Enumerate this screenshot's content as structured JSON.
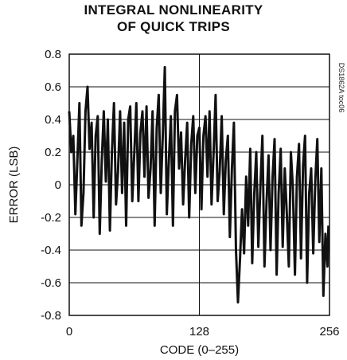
{
  "chart_data": {
    "type": "line",
    "title_line1": "INTEGRAL NONLINEARITY",
    "title_line2": "OF QUICK TRIPS",
    "xlabel": "CODE (0–255)",
    "ylabel": "ERROR (LSB)",
    "side_note": "DS1862A toc06",
    "xlim": [
      0,
      256
    ],
    "ylim": [
      -0.8,
      0.8
    ],
    "xticks": [
      0,
      128,
      256
    ],
    "xtick_labels": [
      "0",
      "128",
      "256"
    ],
    "yticks": [
      -0.8,
      -0.6,
      -0.4,
      -0.2,
      0,
      0.2,
      0.4,
      0.6,
      0.8
    ],
    "ytick_labels": [
      "-0.8",
      "-0.6",
      "-0.4",
      "-0.2",
      "0",
      "0.2",
      "0.4",
      "0.6",
      "0.8"
    ],
    "grid": true,
    "series": [
      {
        "color": "#111111",
        "x": [
          0,
          2,
          4,
          6,
          8,
          10,
          12,
          14,
          16,
          18,
          20,
          22,
          24,
          26,
          28,
          30,
          32,
          34,
          36,
          38,
          40,
          42,
          44,
          46,
          48,
          50,
          52,
          54,
          56,
          58,
          60,
          62,
          64,
          66,
          68,
          70,
          72,
          74,
          76,
          78,
          80,
          82,
          84,
          86,
          88,
          90,
          92,
          94,
          96,
          98,
          100,
          102,
          104,
          106,
          108,
          110,
          112,
          114,
          116,
          118,
          120,
          122,
          124,
          126,
          128,
          130,
          132,
          134,
          136,
          138,
          140,
          142,
          144,
          146,
          148,
          150,
          152,
          154,
          156,
          158,
          160,
          162,
          164,
          166,
          168,
          170,
          172,
          174,
          176,
          178,
          180,
          182,
          184,
          186,
          188,
          190,
          192,
          194,
          196,
          198,
          200,
          202,
          204,
          206,
          208,
          210,
          212,
          214,
          216,
          218,
          220,
          222,
          224,
          226,
          228,
          230,
          232,
          234,
          236,
          238,
          240,
          242,
          244,
          246,
          248,
          250,
          252,
          254,
          255
        ],
        "y": [
          0.45,
          0.2,
          0.3,
          -0.18,
          0.15,
          0.5,
          -0.25,
          -0.05,
          0.45,
          0.6,
          0.22,
          0.38,
          -0.2,
          0.3,
          0.42,
          -0.3,
          0.15,
          0.45,
          0.02,
          0.4,
          -0.28,
          0.2,
          0.5,
          -0.12,
          0.08,
          0.45,
          -0.05,
          0.38,
          -0.25,
          0.4,
          0.48,
          -0.1,
          0.2,
          0.5,
          -0.1,
          0.32,
          0.45,
          0.05,
          0.48,
          -0.08,
          0.1,
          0.45,
          -0.25,
          0.35,
          0.55,
          -0.05,
          0.3,
          0.72,
          -0.18,
          0.15,
          0.42,
          -0.25,
          0.45,
          0.55,
          0.1,
          0.32,
          -0.12,
          0.15,
          0.38,
          -0.2,
          0.25,
          0.42,
          -0.05,
          0.3,
          0.35,
          -0.15,
          0.3,
          0.42,
          0.05,
          0.45,
          -0.12,
          0.2,
          0.55,
          -0.1,
          0.08,
          0.42,
          -0.18,
          0.15,
          0.3,
          -0.32,
          0.1,
          0.38,
          -0.4,
          -0.72,
          -0.45,
          -0.15,
          -0.42,
          0.05,
          -0.25,
          0.22,
          -0.48,
          -0.05,
          0.2,
          -0.38,
          -0.02,
          0.3,
          -0.5,
          -0.12,
          0.18,
          -0.4,
          0.05,
          0.28,
          -0.55,
          -0.05,
          0.22,
          -0.38,
          0.1,
          -0.18,
          -0.5,
          0.2,
          -0.02,
          -0.55,
          0.05,
          0.25,
          -0.45,
          0.12,
          0.3,
          -0.6,
          -0.05,
          0.1,
          -0.42,
          0.02,
          0.28,
          -0.35,
          0.1,
          -0.68,
          -0.3,
          -0.5,
          -0.25
        ]
      }
    ]
  }
}
